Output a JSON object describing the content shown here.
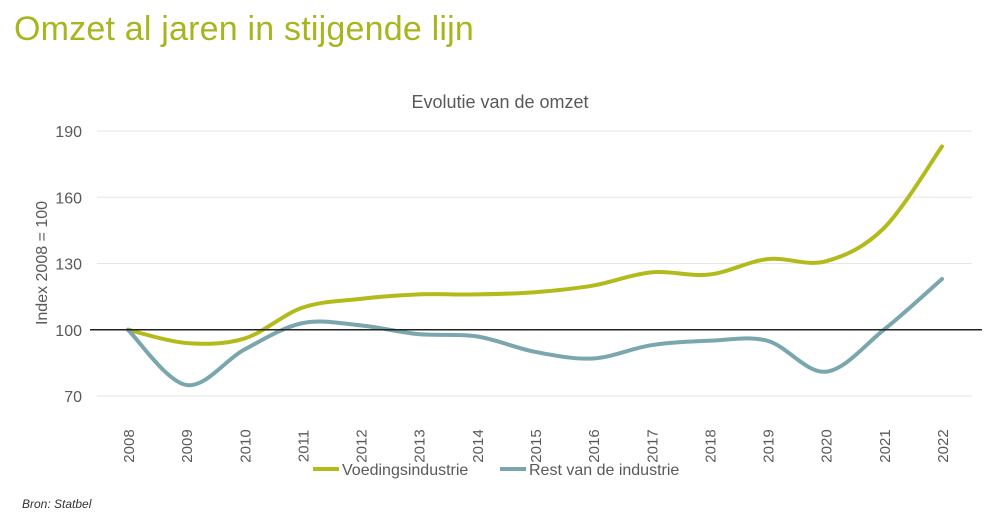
{
  "page": {
    "title": "Omzet al jaren in stijgende lijn",
    "source": "Bron: Statbel"
  },
  "colors": {
    "title": "#a9b51f",
    "voedingsindustrie": "#b3bb1c",
    "rest": "#7aa6ad",
    "baseline": "#222222",
    "grid": "#e6e6e6"
  },
  "chart_data": {
    "type": "line",
    "title": "Evolutie van de omzet",
    "ylabel": "Index 2008 = 100",
    "xlabel": "",
    "ylim": [
      70,
      190
    ],
    "yticks": [
      70,
      100,
      130,
      160,
      190
    ],
    "grid": true,
    "smooth": true,
    "reference_line": 100,
    "legend": "bottom",
    "categories": [
      "2008",
      "2009",
      "2010",
      "2011",
      "2012",
      "2013",
      "2014",
      "2015",
      "2016",
      "2017",
      "2018",
      "2019",
      "2020",
      "2021",
      "2022"
    ],
    "series": [
      {
        "name": "Voedingsindustrie",
        "values": [
          100,
          94,
          96,
          110,
          114,
          116,
          116,
          117,
          120,
          126,
          125,
          132,
          131,
          146,
          183
        ]
      },
      {
        "name": "Rest van de industrie",
        "values": [
          100,
          75,
          91,
          103,
          102,
          98,
          97,
          90,
          87,
          93,
          95,
          95,
          81,
          100,
          123
        ]
      }
    ]
  }
}
